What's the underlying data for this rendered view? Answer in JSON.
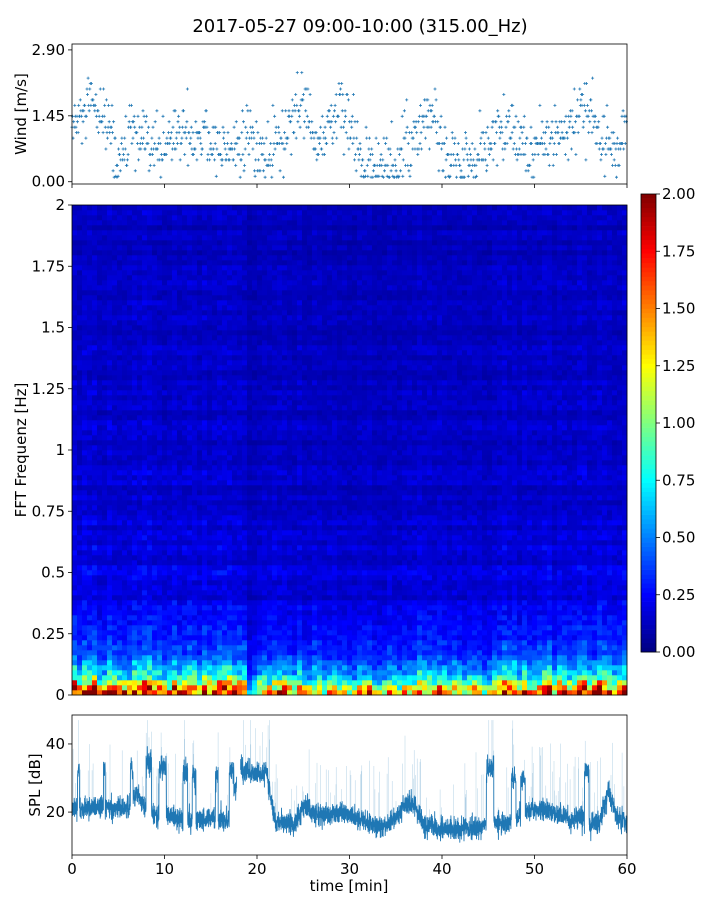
{
  "chart_data": [
    {
      "type": "scatter",
      "title": "2017-05-27 09:00-10:00 (315.00_Hz)",
      "ylabel": "Wind [m/s]",
      "xlabel": "",
      "xlim": [
        0,
        60
      ],
      "ylim": [
        -0.05,
        3.03
      ],
      "yticks": [
        "0.00",
        "1.45",
        "2.90"
      ],
      "xticks": [
        0,
        10,
        20,
        30,
        40,
        50,
        60
      ],
      "marker": "+",
      "color": "#1f77b4",
      "minutes": [
        0,
        1,
        2,
        3,
        4,
        5,
        6,
        7,
        8,
        9,
        10,
        11,
        12,
        13,
        14,
        15,
        16,
        17,
        18,
        19,
        20,
        21,
        22,
        23,
        24,
        25,
        26,
        27,
        28,
        29,
        30,
        31,
        32,
        33,
        34,
        35,
        36,
        37,
        38,
        39,
        40,
        41,
        42,
        43,
        44,
        45,
        46,
        47,
        48,
        49,
        50,
        51,
        52,
        53,
        54,
        55,
        56,
        57,
        58,
        59,
        60
      ],
      "wind_level": [
        1.2,
        1.3,
        1.7,
        1.4,
        1.3,
        0.3,
        0.9,
        1.0,
        0.7,
        0.7,
        0.8,
        1.0,
        1.2,
        0.8,
        1.2,
        0.8,
        0.7,
        0.9,
        0.6,
        1.0,
        0.6,
        0.6,
        0.8,
        0.9,
        1.3,
        1.8,
        1.0,
        0.9,
        1.4,
        1.6,
        1.2,
        0.5,
        0.5,
        0.4,
        0.5,
        0.3,
        0.7,
        1.0,
        1.1,
        1.4,
        0.9,
        0.5,
        0.5,
        0.6,
        0.5,
        0.7,
        1.3,
        1.0,
        0.9,
        0.8,
        0.5,
        0.9,
        1.0,
        1.0,
        1.2,
        1.5,
        1.6,
        1.0,
        0.8,
        0.6,
        1.5
      ]
    },
    {
      "type": "heatmap",
      "ylabel": "FFT Frequenz [Hz]",
      "xlim": [
        0,
        60
      ],
      "ylim": [
        0,
        2
      ],
      "yticks": [
        "0",
        "0.25",
        "0.5",
        "0.75",
        "1",
        "1.25",
        "1.5",
        "1.75",
        "2"
      ],
      "colormap": "jet",
      "colorbar": {
        "range": [
          0,
          2
        ],
        "ticks": [
          "0.00",
          "0.25",
          "0.50",
          "0.75",
          "1.00",
          "1.25",
          "1.50",
          "1.75",
          "2.00"
        ]
      },
      "low_frequency_strength": [
        0.9,
        0.8,
        0.9,
        0.85,
        0.9,
        0.8,
        0.8,
        0.85,
        0.9,
        0.8,
        0.8,
        0.85,
        0.9,
        0.85,
        0.8,
        0.85,
        0.8,
        0.85,
        0.9,
        0.2,
        0.5,
        0.7,
        0.8,
        0.6,
        0.7,
        0.6,
        0.6,
        0.6,
        0.55,
        0.55,
        0.6,
        0.6,
        0.55,
        0.5,
        0.6,
        0.5,
        0.6,
        0.8,
        0.75,
        0.7,
        0.6,
        0.6,
        0.55,
        0.6,
        0.6,
        0.6,
        0.8,
        0.8,
        0.75,
        0.85,
        0.8,
        0.8,
        0.75,
        0.8,
        0.85,
        0.8,
        0.8,
        0.8,
        0.85,
        0.8
      ]
    },
    {
      "type": "line",
      "ylabel": "SPL [dB]",
      "xlabel": "time [min]",
      "xlim": [
        0,
        60
      ],
      "ylim": [
        7.4,
        48.5
      ],
      "yticks": [
        "20",
        "40"
      ],
      "xticks": [
        "0",
        "10",
        "20",
        "30",
        "40",
        "50",
        "60"
      ],
      "color": "#1f77b4",
      "minutes": [
        0,
        1,
        2,
        3,
        4,
        5,
        6,
        7,
        8,
        9,
        10,
        11,
        12,
        13,
        14,
        15,
        16,
        17,
        18,
        19,
        20,
        21,
        22,
        23,
        24,
        25,
        26,
        27,
        28,
        29,
        30,
        31,
        32,
        33,
        34,
        35,
        36,
        37,
        38,
        39,
        40,
        41,
        42,
        43,
        44,
        45,
        46,
        47,
        48,
        49,
        50,
        51,
        52,
        53,
        54,
        55,
        56,
        57,
        58,
        59,
        60
      ],
      "spl_level": [
        21,
        21,
        21,
        22,
        21,
        21,
        21,
        26,
        21,
        19,
        19,
        19,
        18,
        18,
        18,
        18,
        18,
        18,
        32,
        32,
        31,
        32,
        17,
        17,
        16,
        22,
        20,
        19,
        19,
        20,
        19,
        18,
        17,
        16,
        16,
        18,
        22,
        22,
        16,
        16,
        15,
        15,
        15,
        15,
        15,
        17,
        17,
        17,
        18,
        20,
        21,
        21,
        20,
        19,
        18,
        18,
        17,
        17,
        26,
        18,
        17
      ],
      "high_episodes": [
        {
          "start": 0.6,
          "end": 0.8,
          "value": 32
        },
        {
          "start": 3.4,
          "end": 3.6,
          "value": 33
        },
        {
          "start": 6.3,
          "end": 6.6,
          "value": 33
        },
        {
          "start": 8.0,
          "end": 8.6,
          "value": 35
        },
        {
          "start": 9.4,
          "end": 10.2,
          "value": 33
        },
        {
          "start": 12.0,
          "end": 12.5,
          "value": 32
        },
        {
          "start": 13.0,
          "end": 13.4,
          "value": 31
        },
        {
          "start": 15.5,
          "end": 15.8,
          "value": 31
        },
        {
          "start": 17.0,
          "end": 17.5,
          "value": 32
        },
        {
          "start": 44.8,
          "end": 45.6,
          "value": 33
        },
        {
          "start": 47.5,
          "end": 48.0,
          "value": 30
        },
        {
          "start": 48.5,
          "end": 49.0,
          "value": 30
        },
        {
          "start": 55.4,
          "end": 55.9,
          "value": 32
        }
      ],
      "gaps": [
        {
          "start": 17.8,
          "end": 18.2
        }
      ]
    }
  ]
}
